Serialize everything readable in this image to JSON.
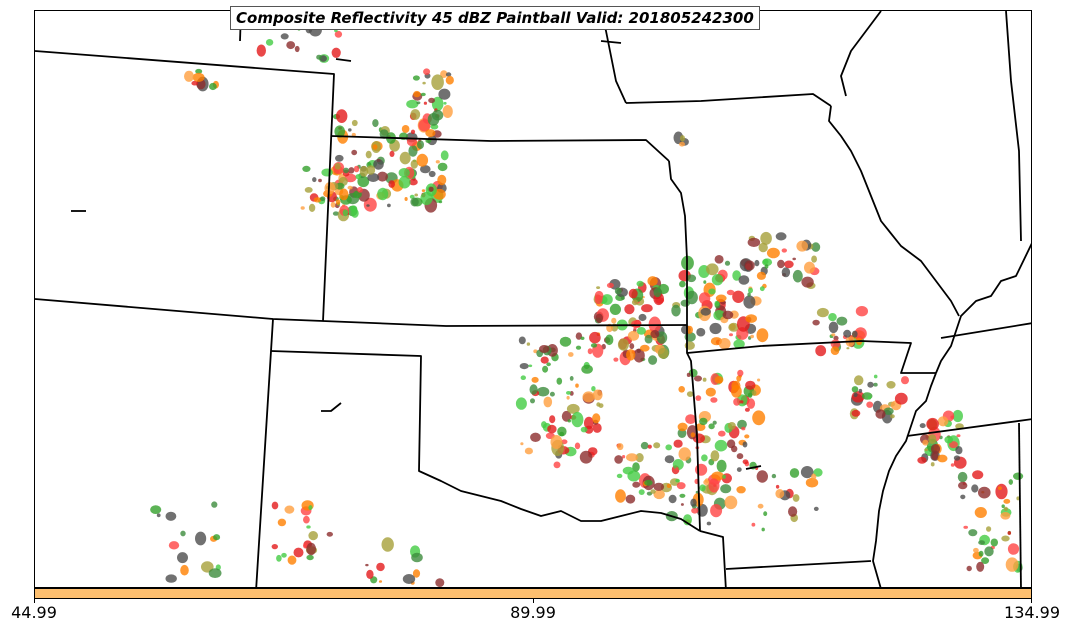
{
  "title": "Composite Reflectivity 45 dBZ Paintball Valid: 201805242300",
  "colors": {
    "border": "#000000",
    "colorbar": "#fdbf6f",
    "members": [
      "#e31a1c",
      "#ff7f00",
      "#33a02c",
      "#4d4d4d",
      "#8c2d2d",
      "#a6a03a",
      "#ff9f3f",
      "#3d8c3d",
      "#ff4444",
      "#44cc44"
    ]
  },
  "colorbar": {
    "min_label": "44.99",
    "mid_label": "89.99",
    "max_label": "134.99"
  }
}
